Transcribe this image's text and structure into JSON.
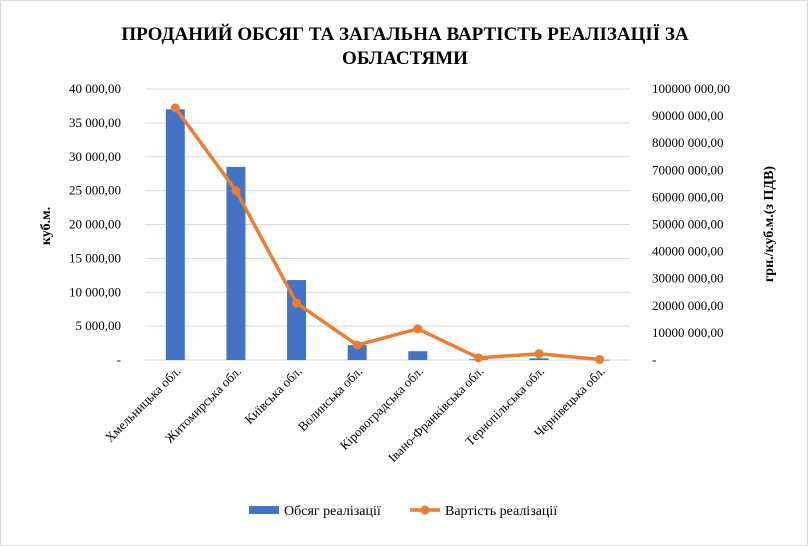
{
  "chart_data": {
    "type": "bar",
    "title_line1": "ПРОДАНИЙ ОБСЯГ ТА ЗАГАЛЬНА ВАРТІСТЬ РЕАЛІЗАЦІЇ ЗА",
    "title_line2": "ОБЛАСТЯМИ",
    "ylabel_left": "куб.м.",
    "ylabel_right": "грн./куб.м.(з ПДВ)",
    "ylim_left": [
      0,
      40000
    ],
    "ylim_right": [
      0,
      100000000
    ],
    "left_ticks": [
      "-",
      "5 000,00",
      "10 000,00",
      "15 000,00",
      "20 000,00",
      "25 000,00",
      "30 000,00",
      "35 000,00",
      "40 000,00"
    ],
    "right_ticks": [
      "-",
      "10000 000,00",
      "20000 000,00",
      "30000 000,00",
      "40000 000,00",
      "50000 000,00",
      "60000 000,00",
      "70000 000,00",
      "80000 000,00",
      "90000 000,00",
      "100000 000,00"
    ],
    "categories": [
      "Хмельницька обл.",
      "Житомирська обл.",
      "Київська обл.",
      "Волинська обл.",
      "Кіровоградська обл.",
      "Івано-Франківська обл.",
      "Тернопільська обл.",
      "Чернівецька обл."
    ],
    "series": [
      {
        "name": "Обсяг реалізації",
        "type": "bar",
        "axis": "left",
        "color": "#4472C4",
        "values": [
          37000,
          28500,
          11800,
          2200,
          1300,
          100,
          250,
          40
        ]
      },
      {
        "name": "Вартість реалізації",
        "type": "line",
        "axis": "right",
        "color": "#ED7D31",
        "values": [
          93000000,
          62500000,
          21000000,
          5500000,
          11500000,
          800000,
          2300000,
          200000
        ]
      }
    ],
    "grid": true,
    "legend": "bottom"
  }
}
